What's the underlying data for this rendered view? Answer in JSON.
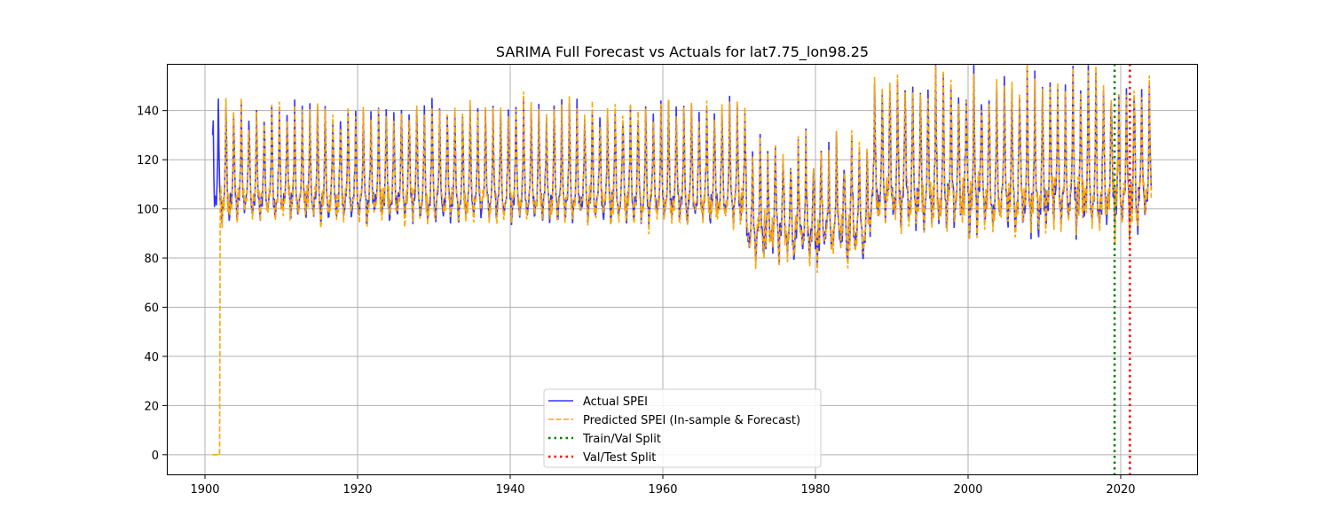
{
  "chart_data": {
    "type": "line",
    "title": "SARIMA Full Forecast vs Actuals for lat7.75_lon98.25",
    "xlabel": "",
    "ylabel": "",
    "xlim": [
      1895,
      2030
    ],
    "ylim": [
      -8,
      159
    ],
    "x_ticks": [
      1900,
      1920,
      1940,
      1960,
      1980,
      2000,
      2020
    ],
    "y_ticks": [
      0,
      20,
      40,
      60,
      80,
      100,
      120,
      140
    ],
    "grid": true,
    "legend_position": "lower-center",
    "series": [
      {
        "name": "Actual SPEI",
        "color": "#0000ff",
        "style": "solid",
        "x_start": 1901.0,
        "x_end": 2024.0,
        "note_regimes": [
          {
            "from": 1901,
            "to": 1971,
            "low": 93,
            "mid": 108,
            "high": 142
          },
          {
            "from": 1971,
            "to": 1987,
            "low": 78,
            "mid": 95,
            "high": 125
          },
          {
            "from": 1987,
            "to": 2024,
            "low": 88,
            "mid": 110,
            "high": 152
          }
        ]
      },
      {
        "name": "Predicted SPEI (In-sample & Forecast)",
        "color": "#ffa500",
        "style": "dashed",
        "x_start": 1901.0,
        "x_end": 2024.0,
        "initial_zero_until": 1902.0
      }
    ],
    "vlines": [
      {
        "name": "Train/Val Split",
        "x": 2019.2,
        "color": "#008000",
        "style": "dotted"
      },
      {
        "name": "Val/Test Split",
        "x": 2021.2,
        "color": "#ff0000",
        "style": "dotted"
      }
    ]
  }
}
